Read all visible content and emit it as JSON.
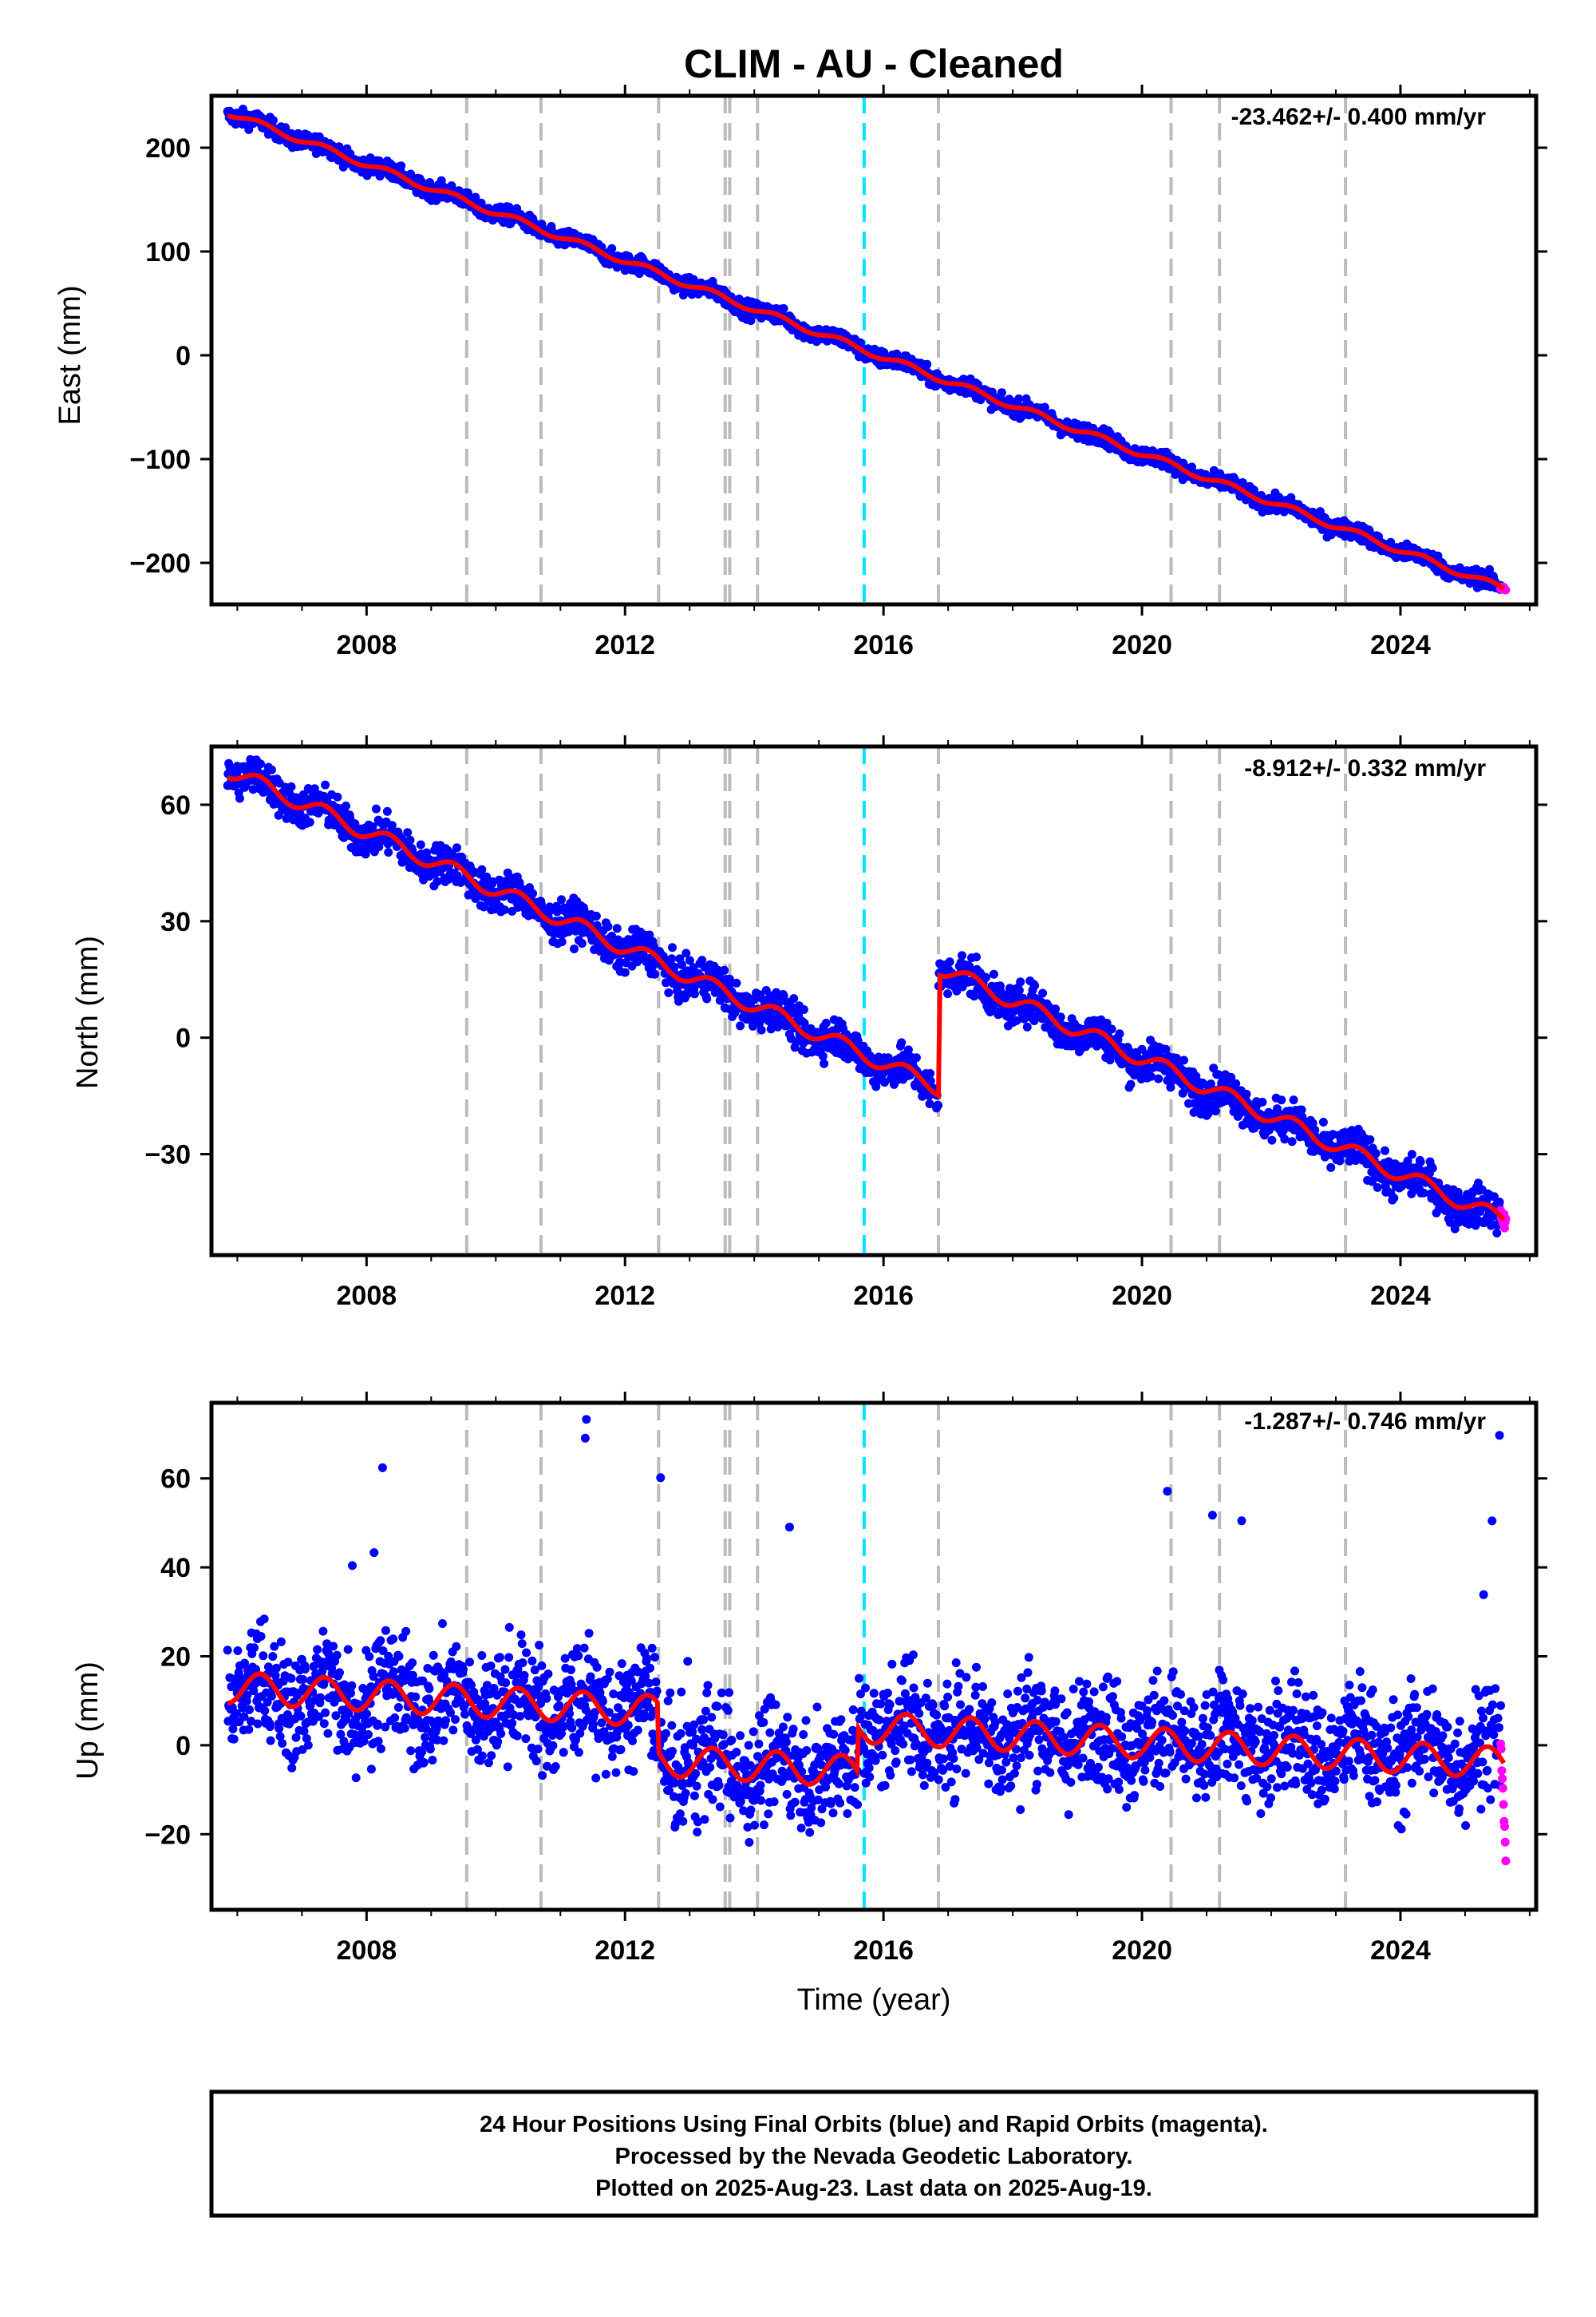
{
  "chart_title": "CLIM  - AU - Cleaned",
  "chart_data": [
    {
      "type": "scatter",
      "ylabel": "East (mm)",
      "xlabel": "",
      "xlim": [
        2005.6,
        2026.1
      ],
      "ylim": [
        -240,
        250
      ],
      "x_ticks": [
        2008,
        2012,
        2016,
        2020,
        2024
      ],
      "y_ticks": [
        -200,
        -100,
        0,
        100,
        200
      ],
      "y_tick_labels": [
        "−200",
        "−100",
        "0",
        "100",
        "200"
      ],
      "rate_text": "-23.462+/- 0.400 mm/yr",
      "grid": false,
      "series": [
        {
          "role": "final",
          "color": "#0000ff",
          "start": 2005.85,
          "end": 2025.55,
          "start_value": 234,
          "end_value": -224,
          "scatter": 4,
          "seasonal": 3,
          "steps": []
        },
        {
          "role": "rapid",
          "color": "#ff00ff",
          "start": 2025.55,
          "end": 2025.63,
          "start_value": -224,
          "end_value": -225
        },
        {
          "role": "model",
          "color": "#ff0000",
          "start": 2005.85,
          "end": 2025.6,
          "start_value": 234,
          "end_value": -225,
          "seasonal": 3,
          "steps": []
        }
      ]
    },
    {
      "type": "scatter",
      "ylabel": "North (mm)",
      "xlabel": "",
      "xlim": [
        2005.6,
        2026.1
      ],
      "ylim": [
        -56,
        75
      ],
      "x_ticks": [
        2008,
        2012,
        2016,
        2020,
        2024
      ],
      "y_ticks": [
        -30,
        0,
        30,
        60
      ],
      "y_tick_labels": [
        "−30",
        "0",
        "30",
        "60"
      ],
      "rate_text": "-8.912+/- 0.332 mm/yr",
      "grid": false,
      "series": [
        {
          "role": "final",
          "color": "#0000ff",
          "start": 2005.85,
          "end": 2025.55,
          "start_value": 69,
          "end_value": -47,
          "scatter": 2.5,
          "seasonal": 2,
          "steps": [
            {
              "at": 2016.85,
              "size": 31
            }
          ]
        },
        {
          "role": "rapid",
          "color": "#ff00ff",
          "start": 2025.55,
          "end": 2025.63,
          "start_value": -46,
          "end_value": -47
        },
        {
          "role": "model",
          "color": "#ff0000",
          "start": 2005.85,
          "end": 2025.6,
          "start_value": 69,
          "end_value": -47,
          "seasonal": 2,
          "steps": [
            {
              "at": 2016.85,
              "size": 31
            }
          ]
        }
      ]
    },
    {
      "type": "scatter",
      "ylabel": "Up (mm)",
      "xlabel": "Time (year)",
      "xlim": [
        2005.6,
        2026.1
      ],
      "ylim": [
        -37,
        77
      ],
      "x_ticks": [
        2008,
        2012,
        2016,
        2020,
        2024
      ],
      "y_ticks": [
        -20,
        0,
        20,
        40,
        60
      ],
      "y_tick_labels": [
        "−20",
        "0",
        "20",
        "40",
        "60"
      ],
      "rate_text": "-1.287+/- 0.746 mm/yr",
      "grid": false,
      "series": [
        {
          "role": "final",
          "color": "#0000ff",
          "start": 2005.85,
          "end": 2025.55,
          "start_value": 12,
          "end_value": -2,
          "scatter": 6.5,
          "seasonal": 3.5,
          "steps": [
            {
              "at": 2012.5,
              "size": -11
            },
            {
              "at": 2015.6,
              "size": 10
            }
          ]
        },
        {
          "role": "rapid",
          "color": "#ff00ff",
          "start": 2025.55,
          "end": 2025.63,
          "start_value": 0,
          "end_value": -25
        },
        {
          "role": "model",
          "color": "#ff0000",
          "start": 2005.85,
          "end": 2025.6,
          "start_value": 13,
          "end_value": -4,
          "seasonal": 3.5,
          "steps": [
            {
              "at": 2012.5,
              "size": -11
            },
            {
              "at": 2015.6,
              "size": 10
            }
          ]
        }
      ]
    }
  ],
  "event_lines": {
    "equipment_color": "#bbbbbb",
    "equipment": [
      2009.55,
      2010.7,
      2012.52,
      2013.55,
      2013.62,
      2014.05,
      2016.85,
      2020.45,
      2021.2,
      2023.15
    ],
    "earthquake_color": "#00e5ff",
    "earthquake": [
      2015.7
    ]
  },
  "footer": {
    "line1": "24 Hour Positions Using Final Orbits (blue) and Rapid Orbits (magenta).",
    "line2": "Processed by the Nevada Geodetic Laboratory.",
    "line3": "Plotted on 2025-Aug-23. Last data on 2025-Aug-19."
  }
}
